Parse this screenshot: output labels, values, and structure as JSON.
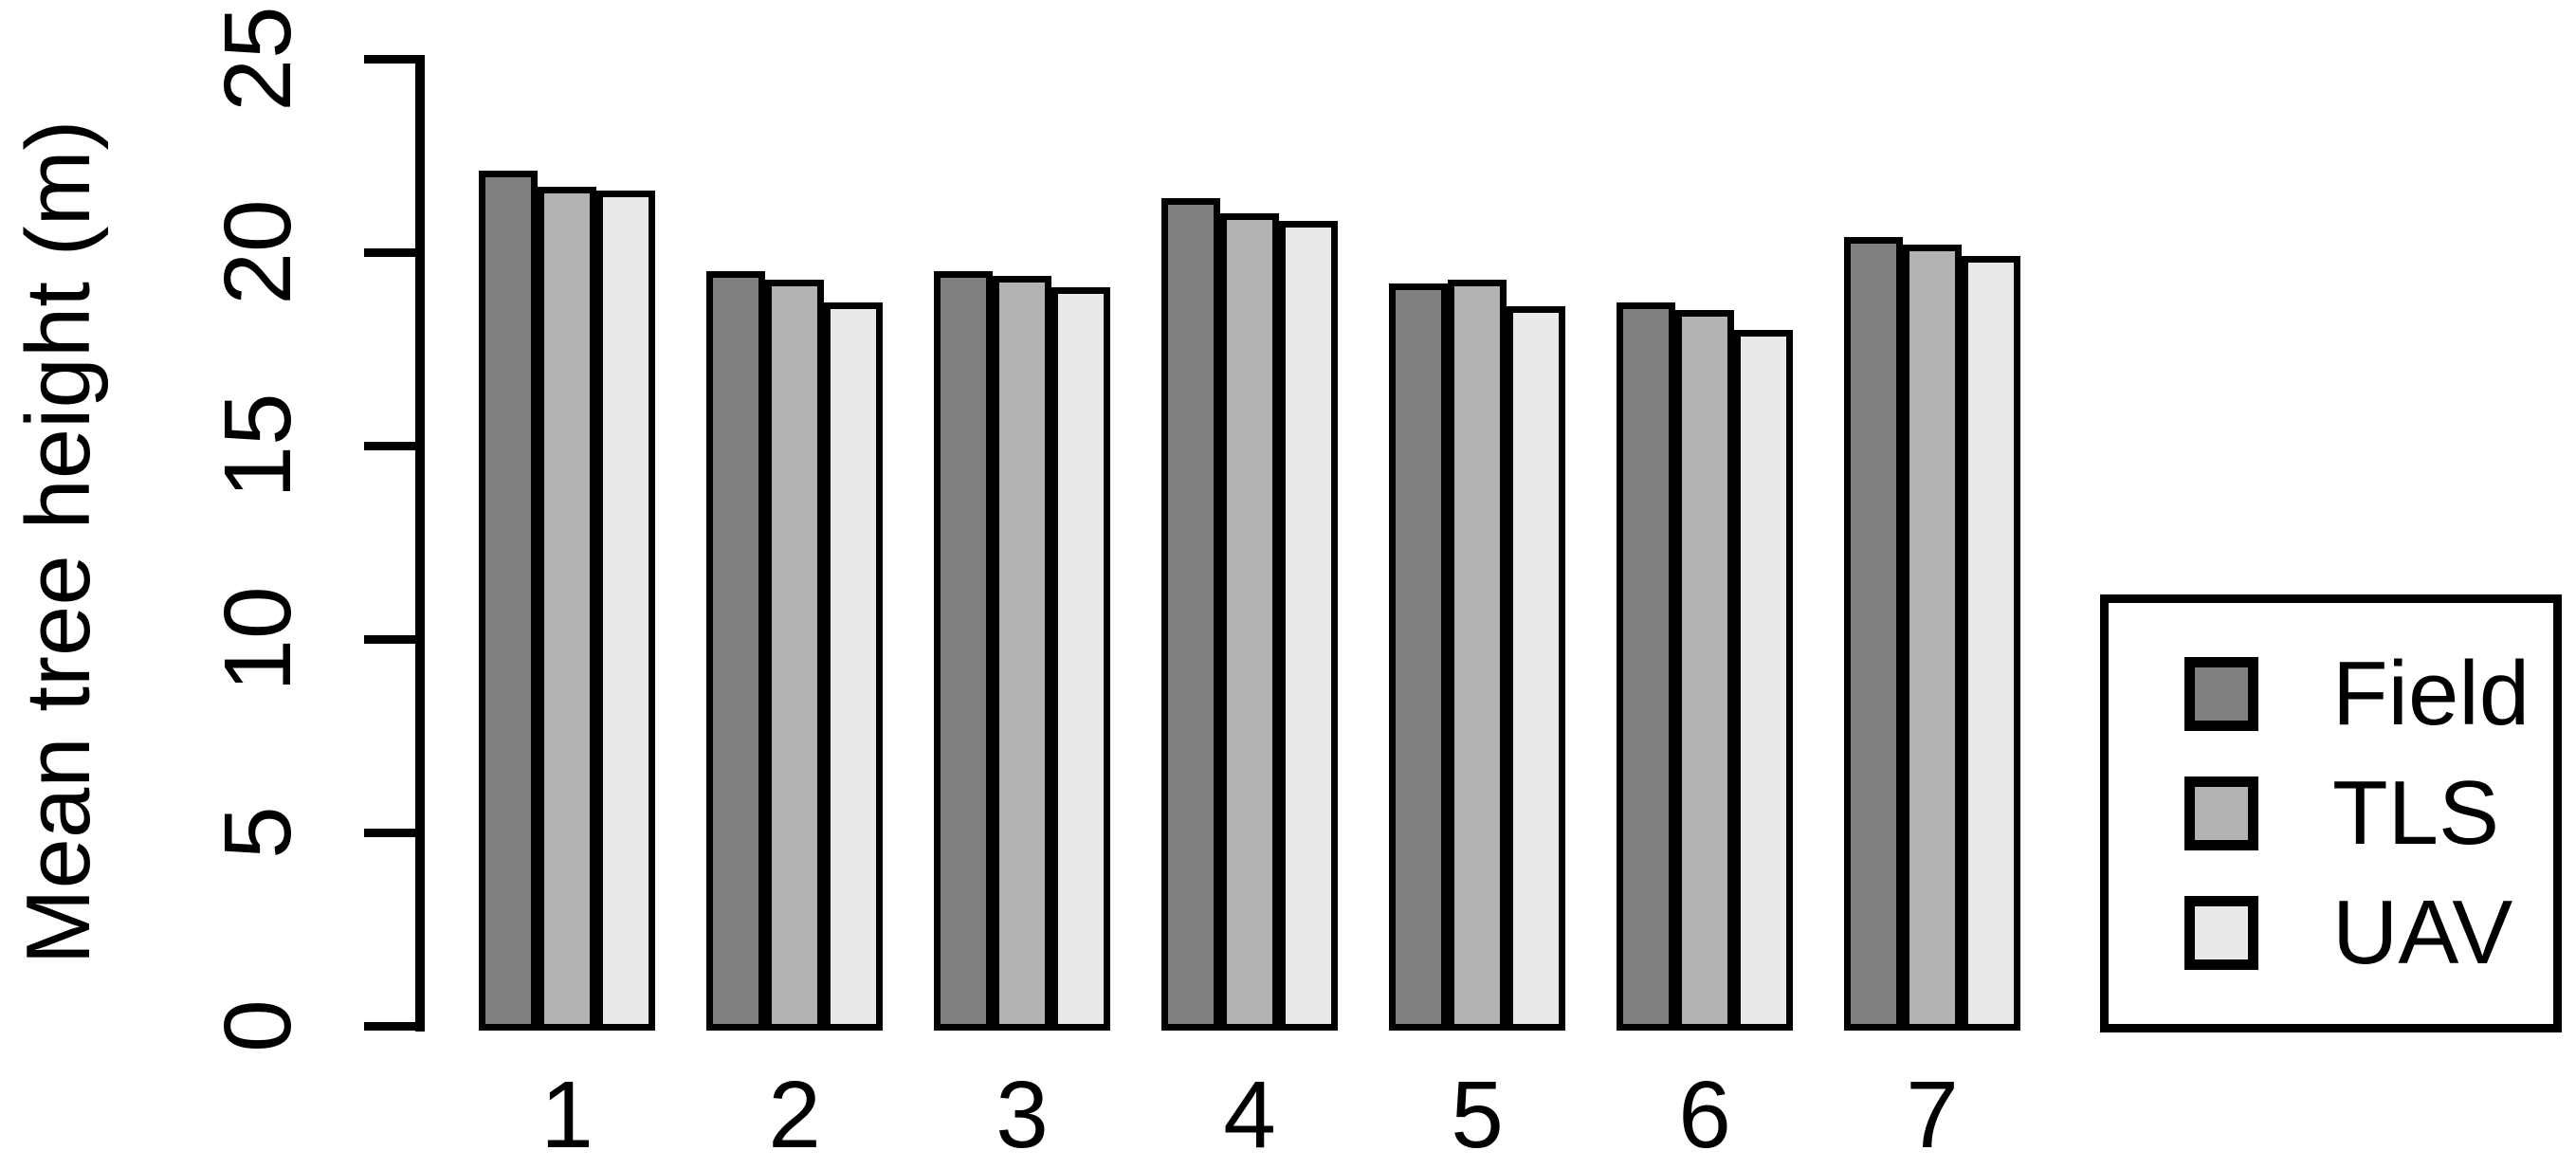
{
  "chart_data": {
    "type": "bar",
    "title": "",
    "xlabel": "",
    "ylabel": "Mean tree height (m)",
    "ylim": [
      0,
      25
    ],
    "yticks": [
      0,
      5,
      10,
      15,
      20,
      25
    ],
    "categories": [
      "1",
      "2",
      "3",
      "4",
      "5",
      "6",
      "7"
    ],
    "series": [
      {
        "name": "Field",
        "color": "#808080",
        "values": [
          22.0,
          19.4,
          19.4,
          21.3,
          19.1,
          18.6,
          20.3
        ]
      },
      {
        "name": "TLS",
        "color": "#b3b3b3",
        "values": [
          21.6,
          19.2,
          19.3,
          20.9,
          19.2,
          18.4,
          20.1
        ]
      },
      {
        "name": "UAV",
        "color": "#e9e9e9",
        "values": [
          21.5,
          18.6,
          19.0,
          20.7,
          18.5,
          17.9,
          19.8
        ]
      }
    ],
    "grid": false,
    "legend_position": "right",
    "bar_border_color": "#000000",
    "axis_color": "#000000",
    "background": "#ffffff"
  }
}
